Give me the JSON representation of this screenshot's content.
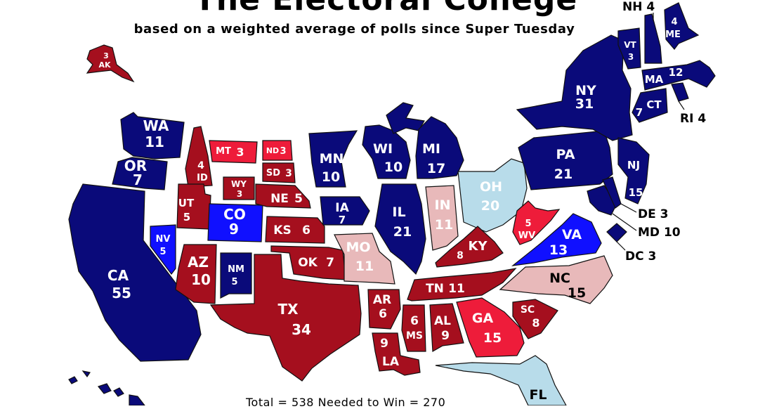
{
  "title": "The Electoral College",
  "subtitle": "based on a weighted average of polls since Super Tuesday",
  "footer": "Total = 538   Needed to Win = 270",
  "colors": {
    "solid_dem": "#0a0a7a",
    "likely_dem": "#1010ff",
    "lean_dem": "#b8dcea",
    "solid_rep": "#a50f1e",
    "likely_rep": "#ee1c3a",
    "lean_rep": "#e8b9ba"
  },
  "states": {
    "WA": {
      "name": "WA",
      "ev": "11"
    },
    "OR": {
      "name": "OR",
      "ev": "7"
    },
    "CA": {
      "name": "CA",
      "ev": "55"
    },
    "NV": {
      "name": "NV",
      "ev": "5"
    },
    "ID": {
      "name": "ID",
      "ev": "4"
    },
    "MT": {
      "name": "MT",
      "ev": "3"
    },
    "WY": {
      "name": "WY",
      "ev": "3"
    },
    "UT": {
      "name": "UT",
      "ev": "5"
    },
    "CO": {
      "name": "CO",
      "ev": "9"
    },
    "AZ": {
      "name": "AZ",
      "ev": "10"
    },
    "NM": {
      "name": "NM",
      "ev": "5"
    },
    "ND": {
      "name": "ND",
      "ev": "3"
    },
    "SD": {
      "name": "SD",
      "ev": "3"
    },
    "NE": {
      "name": "NE",
      "ev": "5"
    },
    "KS": {
      "name": "KS",
      "ev": "6"
    },
    "OK": {
      "name": "OK",
      "ev": "7"
    },
    "TX": {
      "name": "TX",
      "ev": "34"
    },
    "MN": {
      "name": "MN",
      "ev": "10"
    },
    "IA": {
      "name": "IA",
      "ev": "7"
    },
    "MO": {
      "name": "MO",
      "ev": "11"
    },
    "AR": {
      "name": "AR",
      "ev": "6"
    },
    "LA": {
      "name": "LA",
      "ev": "9"
    },
    "WI": {
      "name": "WI",
      "ev": "10"
    },
    "IL": {
      "name": "IL",
      "ev": "21"
    },
    "MI": {
      "name": "MI",
      "ev": "17"
    },
    "IN": {
      "name": "IN",
      "ev": "11"
    },
    "OH": {
      "name": "OH",
      "ev": "20"
    },
    "KY": {
      "name": "KY",
      "ev": "8"
    },
    "TN": {
      "name": "TN",
      "ev": "11"
    },
    "MS": {
      "name": "MS",
      "ev": "6"
    },
    "AL": {
      "name": "AL",
      "ev": "9"
    },
    "GA": {
      "name": "GA",
      "ev": "15"
    },
    "FL": {
      "name": "FL",
      "ev": ""
    },
    "SC": {
      "name": "SC",
      "ev": "8"
    },
    "NC": {
      "name": "NC",
      "ev": "15"
    },
    "VA": {
      "name": "VA",
      "ev": "13"
    },
    "WV": {
      "name": "WV",
      "ev": "5"
    },
    "PA": {
      "name": "PA",
      "ev": "21"
    },
    "NY": {
      "name": "NY",
      "ev": "31"
    },
    "NJ": {
      "name": "NJ",
      "ev": "15"
    },
    "VT": {
      "name": "VT",
      "ev": "3"
    },
    "ME": {
      "name": "ME",
      "ev": "4"
    },
    "MA": {
      "name": "MA",
      "ev": "12"
    },
    "CT": {
      "name": "CT",
      "ev": "7"
    },
    "AK": {
      "name": "AK",
      "ev": "3"
    }
  },
  "callouts": {
    "NH": "NH  4",
    "RI": "RI  4",
    "DE": "DE  3",
    "MD": "MD 10",
    "DC": "DC  3"
  }
}
